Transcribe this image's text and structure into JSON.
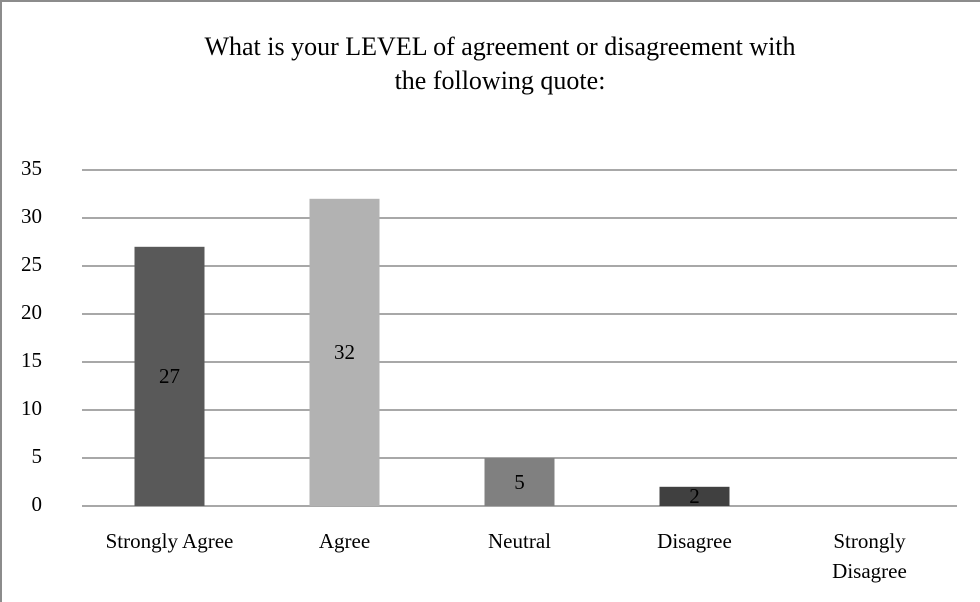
{
  "chart_data": {
    "type": "bar",
    "title": "What is your LEVEL of agreement or disagreement with\nthe following quote:",
    "categories": [
      "Strongly Agree",
      "Agree",
      "Neutral",
      "Disagree",
      "Strongly\nDisagree"
    ],
    "values": [
      27,
      32,
      5,
      2,
      0
    ],
    "colors": [
      "#595959",
      "#b2b2b2",
      "#808080",
      "#404040",
      "#595959"
    ],
    "ylim": [
      0,
      35
    ],
    "yticks": [
      0,
      5,
      10,
      15,
      20,
      25,
      30,
      35
    ],
    "grid": true
  }
}
